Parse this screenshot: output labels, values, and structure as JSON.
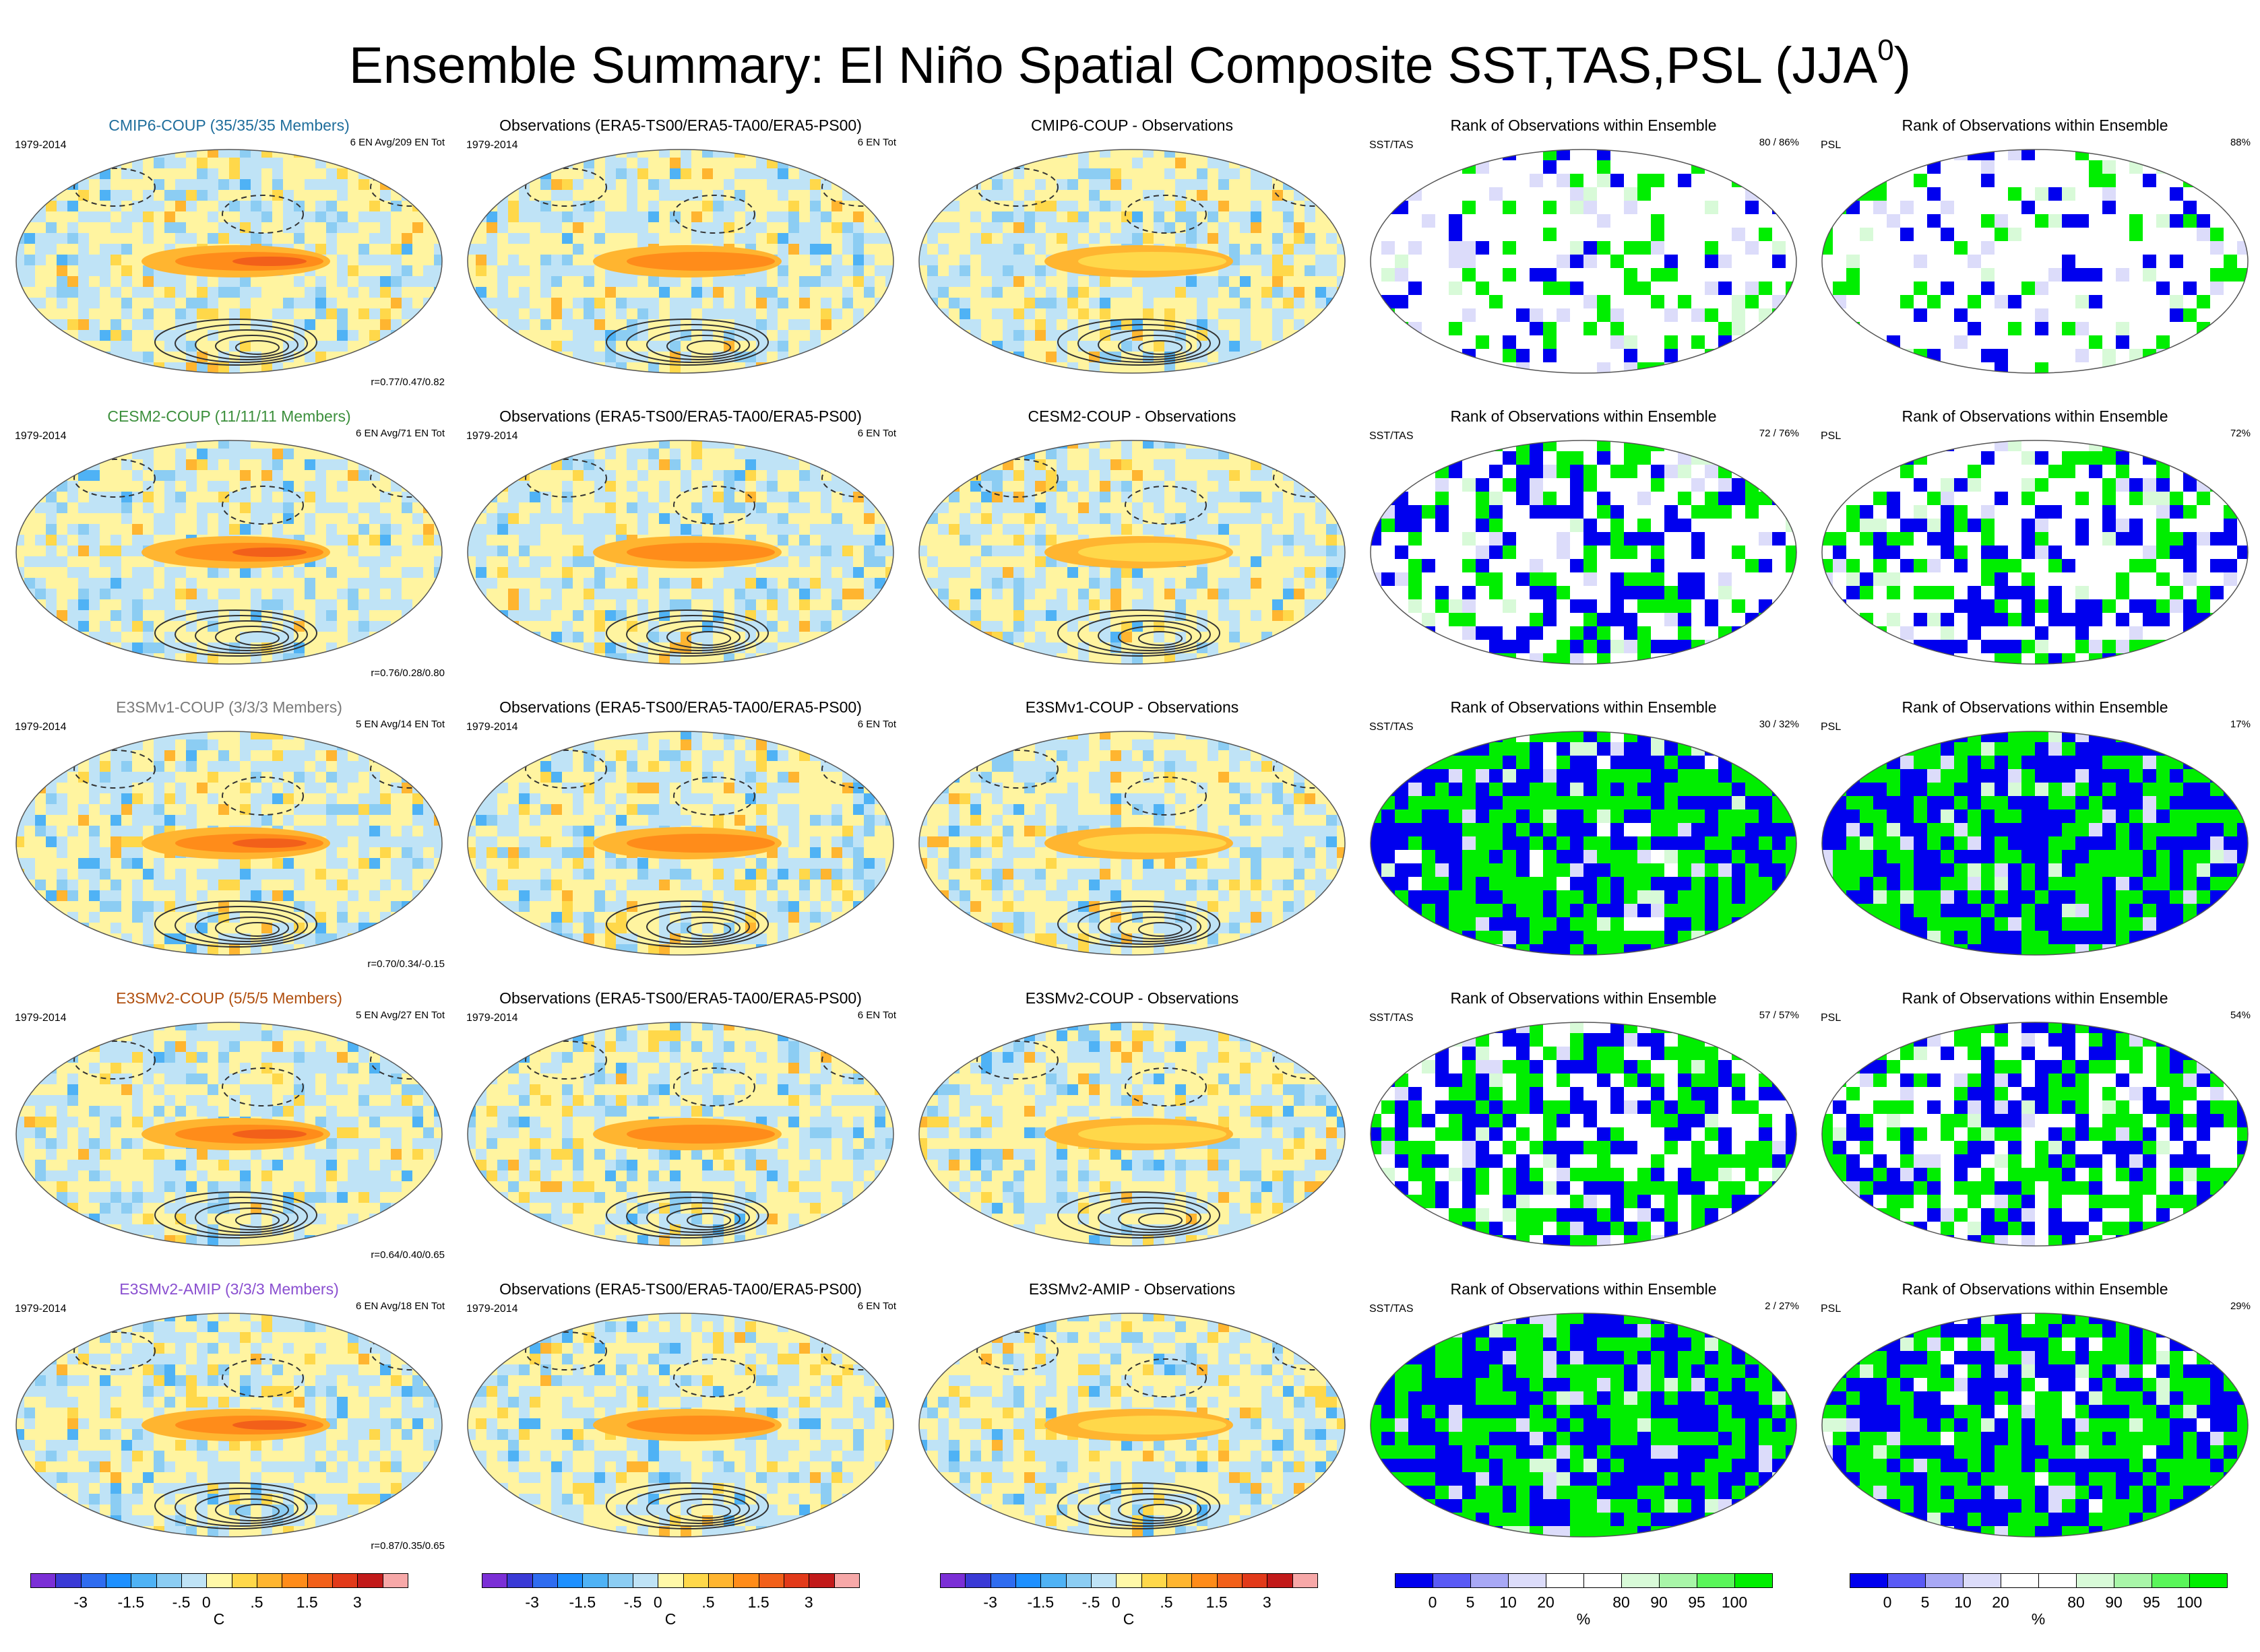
{
  "figure": {
    "title": "Ensemble Summary: El Niño Spatial Composite SST,TAS,PSL (JJA",
    "title_sup": "0"
  },
  "rows": [
    {
      "model": "CMIP6-COUP (35/35/35 Members)",
      "model_color": "#1f6e9c",
      "years": "1979-2014",
      "model_count": "6 EN Avg/209 EN Tot",
      "corr": "r=0.77/0.47/0.82",
      "obs_title": "Observations (ERA5-TS00/ERA5-TA00/ERA5-PS00)",
      "obs_years": "1979-2014",
      "obs_count": "6 EN Tot",
      "diff_title": "CMIP6-COUP - Observations",
      "rank_title": "Rank of Observations within Ensemble",
      "rank_left": "SST/TAS",
      "rank_pct": "80 /  86%",
      "psl_left": "PSL",
      "psl_pct": "88%",
      "rank_level": 0.2,
      "psl_level": 0.18
    },
    {
      "model": "CESM2-COUP (11/11/11 Members)",
      "model_color": "#3c8f3c",
      "years": "1979-2014",
      "model_count": "6 EN Avg/71 EN Tot",
      "corr": "r=0.76/0.28/0.80",
      "obs_title": "Observations (ERA5-TS00/ERA5-TA00/ERA5-PS00)",
      "obs_years": "1979-2014",
      "obs_count": "6 EN Tot",
      "diff_title": "CESM2-COUP - Observations",
      "rank_title": "Rank of Observations within Ensemble",
      "rank_left": "SST/TAS",
      "rank_pct": "72 /  76%",
      "psl_left": "PSL",
      "psl_pct": "72%",
      "rank_level": 0.45,
      "psl_level": 0.4
    },
    {
      "model": "E3SMv1-COUP (3/3/3 Members)",
      "model_color": "#7a7a7a",
      "years": "1979-2014",
      "model_count": "5 EN Avg/14 EN Tot",
      "corr": "r=0.70/0.34/-0.15",
      "obs_title": "Observations (ERA5-TS00/ERA5-TA00/ERA5-PS00)",
      "obs_years": "1979-2014",
      "obs_count": "6 EN Tot",
      "diff_title": "E3SMv1-COUP - Observations",
      "rank_title": "Rank of Observations within Ensemble",
      "rank_left": "SST/TAS",
      "rank_pct": "30 /  32%",
      "psl_left": "PSL",
      "psl_pct": "17%",
      "rank_level": 0.85,
      "psl_level": 0.9
    },
    {
      "model": "E3SMv2-COUP (5/5/5 Members)",
      "model_color": "#b05010",
      "years": "1979-2014",
      "model_count": "5 EN Avg/27 EN Tot",
      "corr": "r=0.64/0.40/0.65",
      "obs_title": "Observations (ERA5-TS00/ERA5-TA00/ERA5-PS00)",
      "obs_years": "1979-2014",
      "obs_count": "6 EN Tot",
      "diff_title": "E3SMv2-COUP - Observations",
      "rank_title": "Rank of Observations within Ensemble",
      "rank_left": "SST/TAS",
      "rank_pct": "57 /  57%",
      "psl_left": "PSL",
      "psl_pct": "54%",
      "rank_level": 0.6,
      "psl_level": 0.6
    },
    {
      "model": "E3SMv2-AMIP (3/3/3 Members)",
      "model_color": "#8a4fd0",
      "years": "1979-2014",
      "model_count": "6 EN Avg/18 EN Tot",
      "corr": "r=0.87/0.35/0.65",
      "obs_title": "Observations (ERA5-TS00/ERA5-TA00/ERA5-PS00)",
      "obs_years": "1979-2014",
      "obs_count": "6 EN Tot",
      "diff_title": "E3SMv2-AMIP - Observations",
      "rank_title": "Rank of Observations within Ensemble",
      "rank_left": "SST/TAS",
      "rank_pct": "2 /  27%",
      "psl_left": "PSL",
      "psl_pct": "29%",
      "rank_level": 0.9,
      "psl_level": 0.85
    }
  ],
  "colorbars": {
    "temp": {
      "colors": [
        "#7b2fd6",
        "#3a3ad6",
        "#2f6cf0",
        "#1e90ff",
        "#4fb2f5",
        "#8ccdf3",
        "#bfe3f6",
        "#fff8a8",
        "#ffd84a",
        "#ffb530",
        "#ff8c1a",
        "#f2601a",
        "#e23a1a",
        "#c21a1a",
        "#f7a8a8"
      ],
      "ticks": [
        "-3",
        "-1.5",
        "-.5",
        "0",
        ".5",
        "1.5",
        "3"
      ],
      "unit": "C"
    },
    "rank": {
      "colors": [
        "#0000ee",
        "#5a5af5",
        "#a8a8f5",
        "#dcdcfa",
        "#ffffff",
        "#ffffff",
        "#d8fad8",
        "#a8f5a8",
        "#5af55a",
        "#00ee00"
      ],
      "ticks": [
        "0",
        "5",
        "10",
        "20",
        "80",
        "90",
        "95",
        "100"
      ],
      "unit": "%"
    }
  }
}
